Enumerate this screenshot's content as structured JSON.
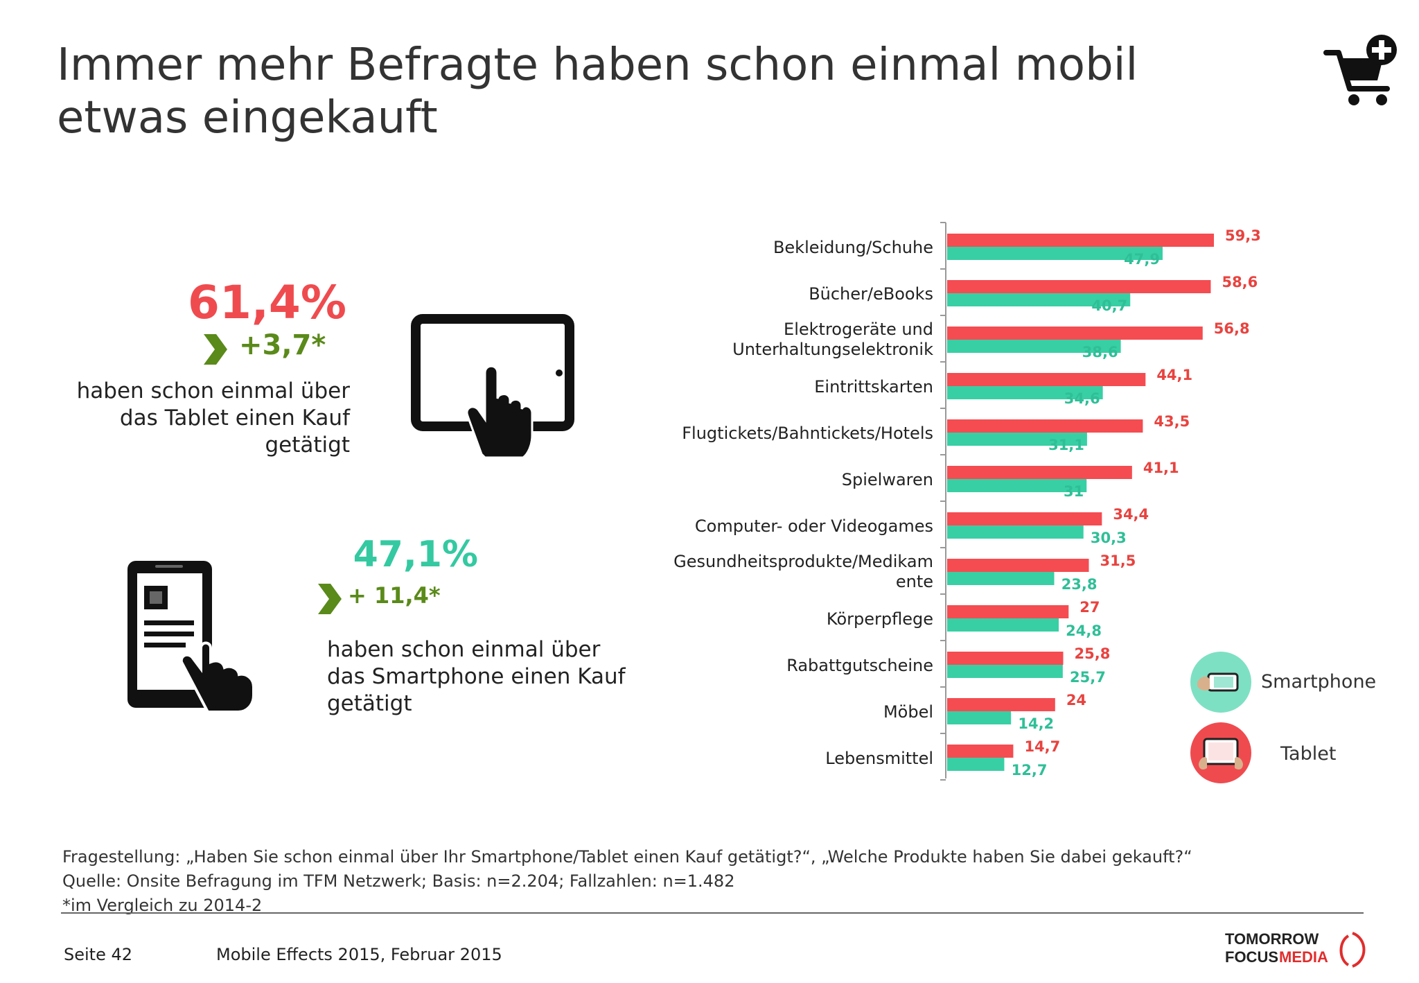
{
  "title": "Immer mehr Befragte haben schon einmal mobil etwas eingekauft",
  "tablet": {
    "value": "61,4%",
    "delta": "+3,7*",
    "description": "haben schon einmal über das Tablet einen Kauf getätigt"
  },
  "smartphone": {
    "value": "47,1%",
    "delta": "+ 11,4*",
    "description": "haben schon einmal über das Smartphone einen Kauf getätigt"
  },
  "legend": {
    "smartphone": "Smartphone",
    "tablet": "Tablet"
  },
  "colors": {
    "tablet": "#f44c51",
    "smartphone": "#38cfa5",
    "tablet_label": "#e8433f",
    "smartphone_label": "#2fbf97",
    "delta": "#5a8a1a"
  },
  "chart_data": {
    "type": "bar",
    "orientation": "horizontal",
    "categories": [
      "Bekleidung/Schuhe",
      "Bücher/eBooks",
      "Elektrogeräte und Unterhaltungselektronik",
      "Eintrittskarten",
      "Flugtickets/Bahntickets/Hotels",
      "Spielwaren",
      "Computer- oder Videogames",
      "Gesundheitsprodukte/Medikamente",
      "Körperpflege",
      "Rabattgutscheine",
      "Möbel",
      "Lebensmittel"
    ],
    "category_lines": [
      [
        "Bekleidung/Schuhe"
      ],
      [
        "Bücher/eBooks"
      ],
      [
        "Elektrogeräte und",
        "Unterhaltungselektronik"
      ],
      [
        "Eintrittskarten"
      ],
      [
        "Flugtickets/Bahntickets/Hotels"
      ],
      [
        "Spielwaren"
      ],
      [
        "Computer- oder Videogames"
      ],
      [
        "Gesundheitsprodukte/Medikam",
        "ente"
      ],
      [
        "Körperpflege"
      ],
      [
        "Rabattgutscheine"
      ],
      [
        "Möbel"
      ],
      [
        "Lebensmittel"
      ]
    ],
    "series": [
      {
        "name": "Tablet",
        "values": [
          59.3,
          58.6,
          56.8,
          44.1,
          43.5,
          41.1,
          34.4,
          31.5,
          27,
          25.8,
          24,
          14.7
        ],
        "labels": [
          "59,3",
          "58,6",
          "56,8",
          "44,1",
          "43,5",
          "41,1",
          "34,4",
          "31,5",
          "27",
          "25,8",
          "24",
          "14,7"
        ]
      },
      {
        "name": "Smartphone",
        "values": [
          47.9,
          40.7,
          38.6,
          34.6,
          31.1,
          31,
          30.3,
          23.8,
          24.8,
          25.7,
          14.2,
          12.7
        ],
        "labels": [
          "47,9",
          "40,7",
          "38,6",
          "34,6",
          "31,1",
          "31",
          "30,3",
          "23,8",
          "24,8",
          "25,7",
          "14,2",
          "12,7"
        ]
      }
    ],
    "xlim": [
      0,
      60
    ],
    "grid": false,
    "legend_position": "right"
  },
  "footnotes": [
    "Fragestellung: „Haben Sie schon einmal über Ihr Smartphone/Tablet einen Kauf getätigt?“, „Welche Produkte haben Sie dabei gekauft?“",
    "Quelle: Onsite Befragung im TFM Netzwerk; Basis: n=2.204; Fallzahlen: n=1.482",
    "*im Vergleich zu 2014-2"
  ],
  "footer": {
    "page": "Seite 42",
    "study": "Mobile Effects 2015, Februar 2015"
  },
  "logo": {
    "line1": "TOMORROW",
    "line2a": "FOCUS",
    "line2b": "MEDIA"
  }
}
